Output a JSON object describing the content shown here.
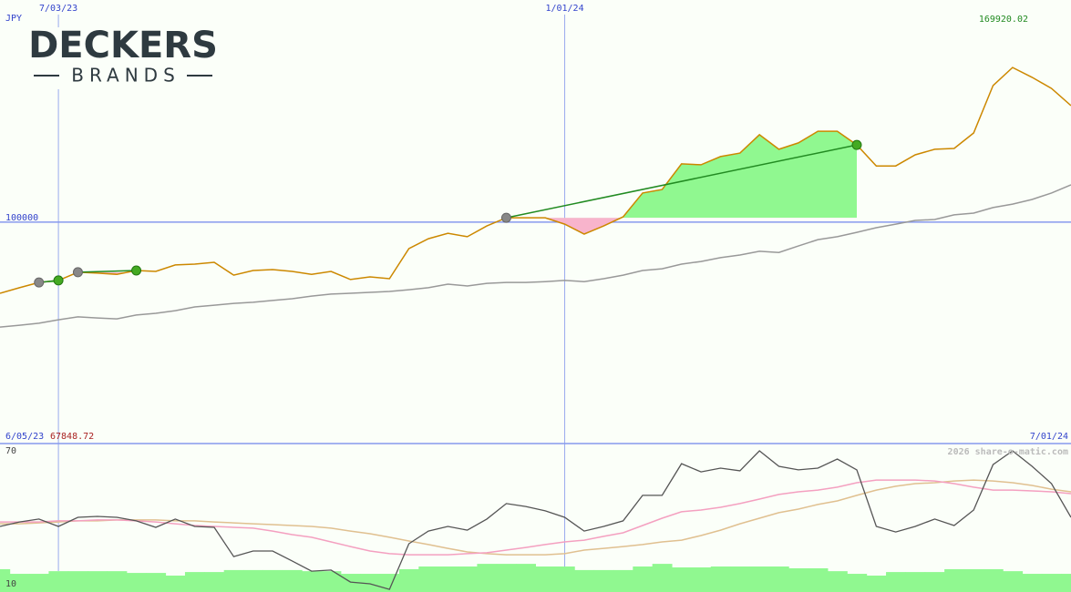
{
  "logo": {
    "name": "DECKERS",
    "sub": "BRANDS"
  },
  "chart_data": [
    {
      "type": "line",
      "currency": "JPY",
      "max_label": 169920.02,
      "min_label": 67848.72,
      "start_label": "6/05/23",
      "end_label": "7/01/24",
      "xlim": [
        0,
        55
      ],
      "xticks": [
        {
          "value": 3,
          "label": "7/03/23"
        },
        {
          "value": 29,
          "label": "1/01/24"
        }
      ],
      "ylim": [
        24000,
        170000
      ],
      "yticks": [
        100000
      ],
      "grid": true,
      "series": [
        {
          "color": "#cc8800",
          "values": [
            75600,
            77500,
            79300,
            80000,
            82800,
            82500,
            82100,
            83400,
            83100,
            85300,
            85600,
            86200,
            81800,
            83400,
            83700,
            83100,
            82100,
            83100,
            80300,
            81200,
            80600,
            90900,
            94300,
            96200,
            95000,
            98700,
            101500,
            101500,
            101500,
            99300,
            95900,
            98700,
            101800,
            110000,
            111200,
            120000,
            119700,
            122500,
            123700,
            130000,
            125000,
            127200,
            131200,
            131200,
            126500,
            119300,
            119300,
            123100,
            125000,
            125300,
            130600,
            146900,
            153100,
            149700,
            145900,
            140000
          ]
        },
        {
          "color": "#999999",
          "values": [
            64000,
            64600,
            65300,
            66500,
            67500,
            67100,
            66800,
            68100,
            68700,
            69600,
            70900,
            71500,
            72100,
            72500,
            73100,
            73700,
            74600,
            75300,
            75600,
            75900,
            76200,
            76800,
            77500,
            78700,
            78100,
            79000,
            79300,
            79300,
            79600,
            80000,
            79600,
            80600,
            81800,
            83400,
            84000,
            85600,
            86500,
            87800,
            88700,
            90000,
            89600,
            91800,
            94000,
            95000,
            96500,
            98100,
            99300,
            100600,
            100900,
            102500,
            103100,
            105000,
            106200,
            107800,
            110000,
            112800
          ]
        }
      ],
      "trades": [
        {
          "entry": 2,
          "exit": 3
        },
        {
          "entry": 4,
          "exit": 7
        },
        {
          "entry": 26,
          "exit": 44
        }
      ],
      "trade_color": "#228b22",
      "gain_color": "#90f890",
      "loss_color": "#f8b4cc"
    },
    {
      "type": "oscillator",
      "watermark": "2026 share-o-matic.com",
      "xlim": [
        0,
        55
      ],
      "ylim": [
        10,
        70
      ],
      "yticks": [
        10,
        70
      ],
      "volume": {
        "color": "#90f890",
        "values": [
          16.6,
          14.5,
          14.5,
          15.7,
          15.7,
          15.7,
          15.7,
          14.9,
          14.9,
          13.7,
          15.3,
          15.3,
          16.2,
          16.2,
          16.2,
          16.2,
          15.7,
          15.7,
          14.5,
          14.5,
          14.5,
          16.6,
          17.8,
          17.8,
          17.8,
          19.0,
          19.0,
          19.0,
          17.8,
          17.8,
          16.2,
          16.2,
          16.2,
          17.8,
          19.0,
          17.4,
          17.4,
          17.8,
          17.8,
          17.8,
          17.8,
          17.0,
          17.0,
          15.7,
          14.5,
          13.7,
          15.3,
          15.3,
          15.3,
          16.6,
          16.6,
          16.6,
          15.7,
          14.5,
          14.5,
          14.5
        ]
      },
      "series": [
        {
          "color": "#e0c090",
          "values": [
            37.1,
            37.1,
            37.5,
            37.9,
            38.4,
            38.4,
            38.8,
            38.8,
            38.8,
            38.4,
            38.4,
            37.9,
            37.5,
            37.1,
            36.7,
            36.3,
            35.9,
            35.1,
            33.8,
            32.6,
            31.0,
            29.3,
            27.7,
            26.0,
            24.4,
            23.6,
            23.1,
            23.1,
            23.1,
            23.6,
            25.2,
            26.0,
            26.8,
            27.7,
            28.9,
            29.7,
            31.8,
            34.2,
            37.1,
            39.6,
            42.1,
            43.7,
            45.8,
            47.4,
            49.9,
            52.3,
            54.0,
            55.2,
            55.6,
            56.4,
            56.8,
            56.4,
            55.6,
            54.4,
            52.7,
            51.5
          ]
        },
        {
          "color": "#f4a0c0",
          "values": [
            37.9,
            37.9,
            37.9,
            38.4,
            38.4,
            38.8,
            38.8,
            38.4,
            37.9,
            37.1,
            36.3,
            35.9,
            35.5,
            35.1,
            33.8,
            32.2,
            31.0,
            28.9,
            26.8,
            24.8,
            23.6,
            23.1,
            23.1,
            23.1,
            23.6,
            24.0,
            25.2,
            26.4,
            27.7,
            28.9,
            29.7,
            31.4,
            33.0,
            36.3,
            39.6,
            42.5,
            43.3,
            44.5,
            46.2,
            48.2,
            50.3,
            51.5,
            52.3,
            53.6,
            55.6,
            56.8,
            56.8,
            56.8,
            56.4,
            55.2,
            53.6,
            52.3,
            52.3,
            51.9,
            51.5,
            50.7
          ]
        },
        {
          "color": "#555555",
          "values": [
            35.9,
            37.9,
            39.2,
            35.9,
            40.0,
            40.4,
            40.0,
            38.4,
            35.5,
            39.2,
            35.9,
            35.5,
            22.3,
            24.8,
            24.8,
            20.3,
            15.7,
            16.2,
            10.8,
            10.0,
            7.5,
            28.1,
            33.8,
            35.9,
            34.2,
            39.2,
            46.2,
            44.9,
            42.9,
            40.0,
            33.8,
            35.9,
            38.4,
            49.9,
            49.9,
            64.2,
            60.5,
            62.2,
            61.0,
            70.0,
            63.0,
            61.4,
            62.2,
            66.3,
            61.4,
            35.9,
            33.4,
            35.9,
            39.2,
            36.3,
            43.3,
            63.8,
            70.0,
            63.0,
            55.2,
            40.0
          ]
        }
      ]
    }
  ]
}
